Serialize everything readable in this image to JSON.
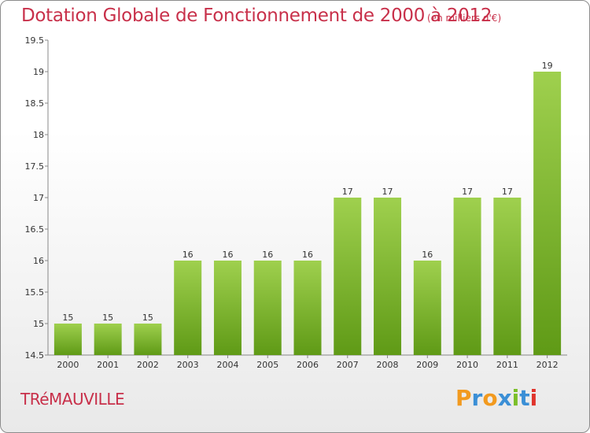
{
  "chart_data": {
    "type": "bar",
    "title": "Dotation Globale de Fonctionnement de 2000 à 2012",
    "subtitle": "(en milliers d'€)",
    "categories": [
      "2000",
      "2001",
      "2002",
      "2003",
      "2004",
      "2005",
      "2006",
      "2007",
      "2008",
      "2009",
      "2010",
      "2011",
      "2012"
    ],
    "values": [
      15,
      15,
      15,
      16,
      16,
      16,
      16,
      17,
      17,
      16,
      17,
      17,
      19
    ],
    "value_labels": [
      "15",
      "15",
      "15",
      "16",
      "16",
      "16",
      "16",
      "17",
      "17",
      "16",
      "17",
      "17",
      "19"
    ],
    "ylim": [
      14.5,
      19.5
    ],
    "yticks": [
      14.5,
      15,
      15.5,
      16,
      16.5,
      17,
      17.5,
      18,
      18.5,
      19,
      19.5
    ],
    "ytick_labels": [
      "14.5",
      "15",
      "15.5",
      "16",
      "16.5",
      "17",
      "17.5",
      "18",
      "18.5",
      "19",
      "19.5"
    ],
    "xlabel": "",
    "ylabel": "",
    "grid": false,
    "bar_color_top": "#9fd04e",
    "bar_color_bottom": "#5f9a16"
  },
  "footer": {
    "commune": "TRéMAUVILLE",
    "logo_letters": [
      "P",
      "r",
      "o",
      "x",
      "i",
      "t",
      "i"
    ],
    "logo_colors": [
      "#f29a1f",
      "#3b8fd6",
      "#f29a1f",
      "#3b8fd6",
      "#7bbf2a",
      "#3b8fd6",
      "#e0342c"
    ]
  }
}
